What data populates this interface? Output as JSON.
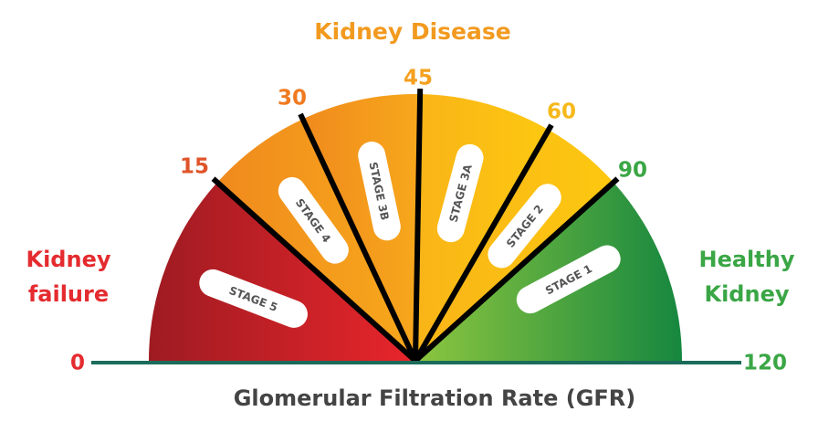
{
  "title": "Kidney Disease",
  "axis_label": "Glomerular Filtration Rate (GFR)",
  "left_label": [
    "Kidney",
    "failure"
  ],
  "right_label": [
    "Healthy",
    "Kidney"
  ],
  "ticks": [
    0,
    15,
    30,
    45,
    60,
    90,
    120
  ],
  "stages": [
    "STAGE 5",
    "STAGE 4",
    "STAGE 3B",
    "STAGE 3A",
    "STAGE 2",
    "STAGE 1"
  ]
}
